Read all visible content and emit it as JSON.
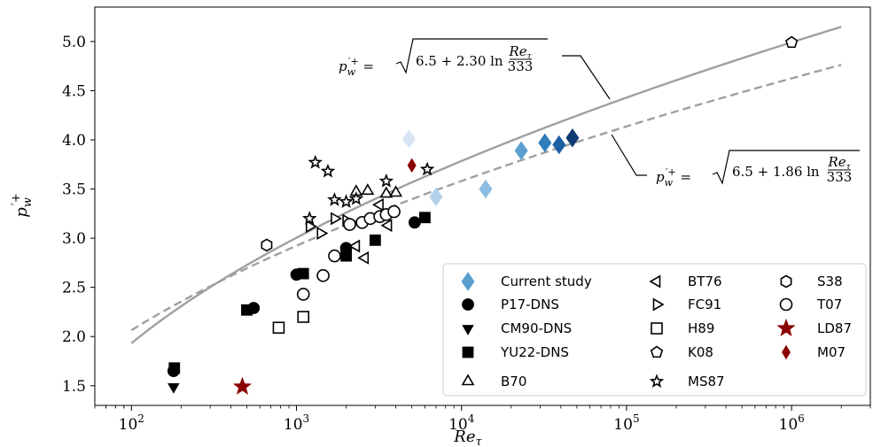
{
  "chart_data": {
    "type": "scatter",
    "title": "",
    "xlabel": "Re_τ",
    "ylabel": "p'_w^+",
    "xscale": "log",
    "xlim": [
      60,
      3000000
    ],
    "ylim": [
      1.3,
      5.35
    ],
    "x_ticks": [
      {
        "value": 100,
        "base": "10",
        "exp": "2"
      },
      {
        "value": 1000,
        "base": "10",
        "exp": "3"
      },
      {
        "value": 10000,
        "base": "10",
        "exp": "4"
      },
      {
        "value": 100000,
        "base": "10",
        "exp": "5"
      },
      {
        "value": 1000000,
        "base": "10",
        "exp": "6"
      }
    ],
    "y_ticks": [
      {
        "value": 1.5,
        "label": "1.5"
      },
      {
        "value": 2.0,
        "label": "2.0"
      },
      {
        "value": 2.5,
        "label": "2.5"
      },
      {
        "value": 3.0,
        "label": "3.0"
      },
      {
        "value": 3.5,
        "label": "3.5"
      },
      {
        "value": 4.0,
        "label": "4.0"
      },
      {
        "value": 4.5,
        "label": "4.5"
      },
      {
        "value": 5.0,
        "label": "5.0"
      }
    ],
    "grid": false,
    "legend_position": "lower-right",
    "curves": [
      {
        "a": 6.5,
        "b": 2.3,
        "c": 333,
        "style": "solid",
        "color": "#a0a0a0",
        "label": {
          "lhs": "p′w+",
          "const": "6.5 + 2.30 ln",
          "num": "Reτ",
          "den": "333"
        }
      },
      {
        "a": 6.5,
        "b": 1.86,
        "c": 333,
        "style": "dashed",
        "color": "#a0a0a0",
        "label": {
          "lhs": "p′w+",
          "const": "6.5 + 1.86 ln",
          "num": "Reτ",
          "den": "333"
        }
      }
    ],
    "series": [
      {
        "name": "Current study",
        "marker": "diamond-filled",
        "points": [
          {
            "x": 4800,
            "y": 4.01,
            "color": "#d6e4f3"
          },
          {
            "x": 7000,
            "y": 3.42,
            "color": "#b3d0ea"
          },
          {
            "x": 14000,
            "y": 3.5,
            "color": "#8cbde2"
          },
          {
            "x": 23000,
            "y": 3.89,
            "color": "#5a9fd0"
          },
          {
            "x": 32000,
            "y": 3.97,
            "color": "#2f7dbd"
          },
          {
            "x": 39000,
            "y": 3.95,
            "color": "#1c5fa3"
          },
          {
            "x": 47000,
            "y": 4.02,
            "color": "#0e3b73"
          }
        ]
      },
      {
        "name": "P17-DNS",
        "marker": "circle-filled",
        "points": [
          {
            "x": 180,
            "y": 1.65
          },
          {
            "x": 550,
            "y": 2.29
          },
          {
            "x": 1000,
            "y": 2.63
          },
          {
            "x": 2000,
            "y": 2.9
          },
          {
            "x": 5200,
            "y": 3.16
          }
        ]
      },
      {
        "name": "CM90-DNS",
        "marker": "triangle-down-filled",
        "points": [
          {
            "x": 180,
            "y": 1.49
          }
        ]
      },
      {
        "name": "YU22-DNS",
        "marker": "square-filled",
        "points": [
          {
            "x": 182,
            "y": 1.68
          },
          {
            "x": 500,
            "y": 2.27
          },
          {
            "x": 1100,
            "y": 2.64
          },
          {
            "x": 2000,
            "y": 2.82
          },
          {
            "x": 3000,
            "y": 2.98
          },
          {
            "x": 6000,
            "y": 3.21
          }
        ]
      },
      {
        "name": "B70",
        "marker": "triangle-up-open",
        "points": [
          {
            "x": 2300,
            "y": 3.47
          },
          {
            "x": 2700,
            "y": 3.48
          },
          {
            "x": 3500,
            "y": 3.45
          },
          {
            "x": 4000,
            "y": 3.46
          }
        ]
      },
      {
        "name": "BT76",
        "marker": "triangle-left-open",
        "points": [
          {
            "x": 2300,
            "y": 2.92
          },
          {
            "x": 2600,
            "y": 2.8
          },
          {
            "x": 3200,
            "y": 3.34
          },
          {
            "x": 3600,
            "y": 3.13
          }
        ]
      },
      {
        "name": "FC91",
        "marker": "triangle-right-open",
        "points": [
          {
            "x": 1200,
            "y": 3.12
          },
          {
            "x": 1400,
            "y": 3.05
          },
          {
            "x": 1700,
            "y": 3.2
          },
          {
            "x": 2000,
            "y": 3.18
          }
        ]
      },
      {
        "name": "H89",
        "marker": "square-open",
        "points": [
          {
            "x": 780,
            "y": 2.09
          },
          {
            "x": 1100,
            "y": 2.2
          }
        ]
      },
      {
        "name": "K08",
        "marker": "pentagon-open",
        "points": [
          {
            "x": 1000000,
            "y": 4.99
          }
        ]
      },
      {
        "name": "MS87",
        "marker": "star-open",
        "points": [
          {
            "x": 1300,
            "y": 3.77
          },
          {
            "x": 1550,
            "y": 3.68
          },
          {
            "x": 1700,
            "y": 3.39
          },
          {
            "x": 2000,
            "y": 3.37
          },
          {
            "x": 2300,
            "y": 3.4
          },
          {
            "x": 1200,
            "y": 3.2
          },
          {
            "x": 3500,
            "y": 3.58
          },
          {
            "x": 6200,
            "y": 3.7
          }
        ]
      },
      {
        "name": "S38",
        "marker": "hexagon-open",
        "points": [
          {
            "x": 660,
            "y": 2.93
          }
        ]
      },
      {
        "name": "T07",
        "marker": "circle-open",
        "points": [
          {
            "x": 1100,
            "y": 2.43
          },
          {
            "x": 1450,
            "y": 2.62
          },
          {
            "x": 1700,
            "y": 2.82
          },
          {
            "x": 2100,
            "y": 3.14
          },
          {
            "x": 2500,
            "y": 3.16
          },
          {
            "x": 2800,
            "y": 3.2
          },
          {
            "x": 3200,
            "y": 3.22
          },
          {
            "x": 3500,
            "y": 3.24
          },
          {
            "x": 3900,
            "y": 3.27
          }
        ]
      },
      {
        "name": "LD87",
        "marker": "star-filled",
        "color": "#8b0000",
        "points": [
          {
            "x": 470,
            "y": 1.49
          }
        ]
      },
      {
        "name": "M07",
        "marker": "diamond-filled-small",
        "color": "#8b0000",
        "points": [
          {
            "x": 5000,
            "y": 3.74
          }
        ]
      }
    ],
    "legend": [
      {
        "name": "Current study",
        "marker": "diamond-filled",
        "color": "#5a9fd0"
      },
      {
        "name": "P17-DNS",
        "marker": "circle-filled"
      },
      {
        "name": "CM90-DNS",
        "marker": "triangle-down-filled"
      },
      {
        "name": "YU22-DNS",
        "marker": "square-filled"
      },
      {
        "name": "B70",
        "marker": "triangle-up-open"
      },
      {
        "name": "BT76",
        "marker": "triangle-left-open"
      },
      {
        "name": "FC91",
        "marker": "triangle-right-open"
      },
      {
        "name": "H89",
        "marker": "square-open"
      },
      {
        "name": "K08",
        "marker": "pentagon-open"
      },
      {
        "name": "MS87",
        "marker": "star-open"
      },
      {
        "name": "S38",
        "marker": "hexagon-open"
      },
      {
        "name": "T07",
        "marker": "circle-open"
      },
      {
        "name": "LD87",
        "marker": "star-filled",
        "color": "#8b0000"
      },
      {
        "name": "M07",
        "marker": "diamond-filled-small",
        "color": "#8b0000"
      }
    ]
  }
}
